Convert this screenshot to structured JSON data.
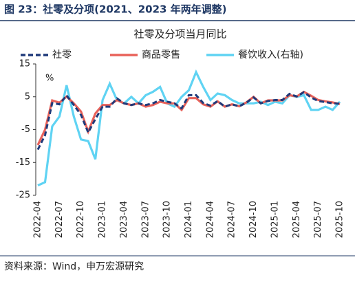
{
  "header": "图 23：社零及分项(2021、2023 年两年调整)",
  "source": "资料来源：Wind，申万宏源研究",
  "chart_data": {
    "type": "line",
    "title": "社零及分项当月同比",
    "unit_label": "%",
    "categories": [
      "2022-04",
      null,
      null,
      "2022-07",
      null,
      null,
      "2022-10",
      null,
      null,
      "2023-01",
      null,
      null,
      "2023-04",
      null,
      null,
      "2023-07",
      null,
      null,
      "2023-10",
      null,
      null,
      "2024-01",
      null,
      null,
      "2024-04",
      null,
      null,
      "2024-07",
      null,
      null,
      "2024-10",
      null,
      null,
      "2025-01",
      null,
      null,
      "2025-04",
      null,
      null,
      "2025-07",
      null,
      null,
      "2025-10"
    ],
    "series": [
      {
        "name": "社零",
        "color": "#1f3a7a",
        "dash": true,
        "values": [
          -11.1,
          -6.7,
          3.1,
          2.7,
          5.4,
          2.5,
          -0.5,
          -5.9,
          -1.8,
          2.0,
          2.0,
          4.5,
          3.0,
          2.5,
          3.0,
          2.5,
          3.0,
          4.0,
          3.5,
          3.0,
          1.5,
          5.5,
          5.5,
          3.1,
          2.3,
          3.7,
          2.0,
          2.7,
          2.1,
          3.2,
          4.8,
          3.0,
          3.7,
          4.0,
          4.0,
          5.9,
          5.1,
          6.4,
          4.8,
          3.7,
          3.4,
          3.0,
          2.9
        ]
      },
      {
        "name": "商品零售",
        "color": "#e8625a",
        "dash": false,
        "values": [
          -9.7,
          -5.0,
          3.9,
          3.2,
          5.1,
          3.0,
          0.5,
          -5.6,
          -0.1,
          2.5,
          2.5,
          4.0,
          3.0,
          2.5,
          3.0,
          2.0,
          2.5,
          3.5,
          3.0,
          3.0,
          1.0,
          4.6,
          4.6,
          2.7,
          2.0,
          3.6,
          2.0,
          2.7,
          2.1,
          3.3,
          5.0,
          3.0,
          3.9,
          3.9,
          3.9,
          5.5,
          5.1,
          6.5,
          5.3,
          4.0,
          3.6,
          3.3,
          2.8
        ]
      },
      {
        "name": "餐饮收入(右轴)",
        "color": "#5fd3f3",
        "dash": false,
        "values": [
          -22,
          -21,
          -4,
          -1,
          8.5,
          -1,
          -8,
          -8.5,
          -14,
          4,
          9,
          4,
          3,
          5,
          3,
          5.5,
          6.5,
          8,
          3,
          2,
          5,
          7,
          12.5,
          8,
          4,
          6,
          5.5,
          4,
          3,
          3,
          3,
          3.5,
          2.5,
          3.5,
          3,
          5.5,
          5,
          5.5,
          1,
          1,
          2,
          1,
          3.5
        ]
      }
    ],
    "ylim": [
      -25,
      15
    ],
    "yticks": [
      -25,
      -15,
      -5,
      5,
      15
    ],
    "legend": "top"
  }
}
